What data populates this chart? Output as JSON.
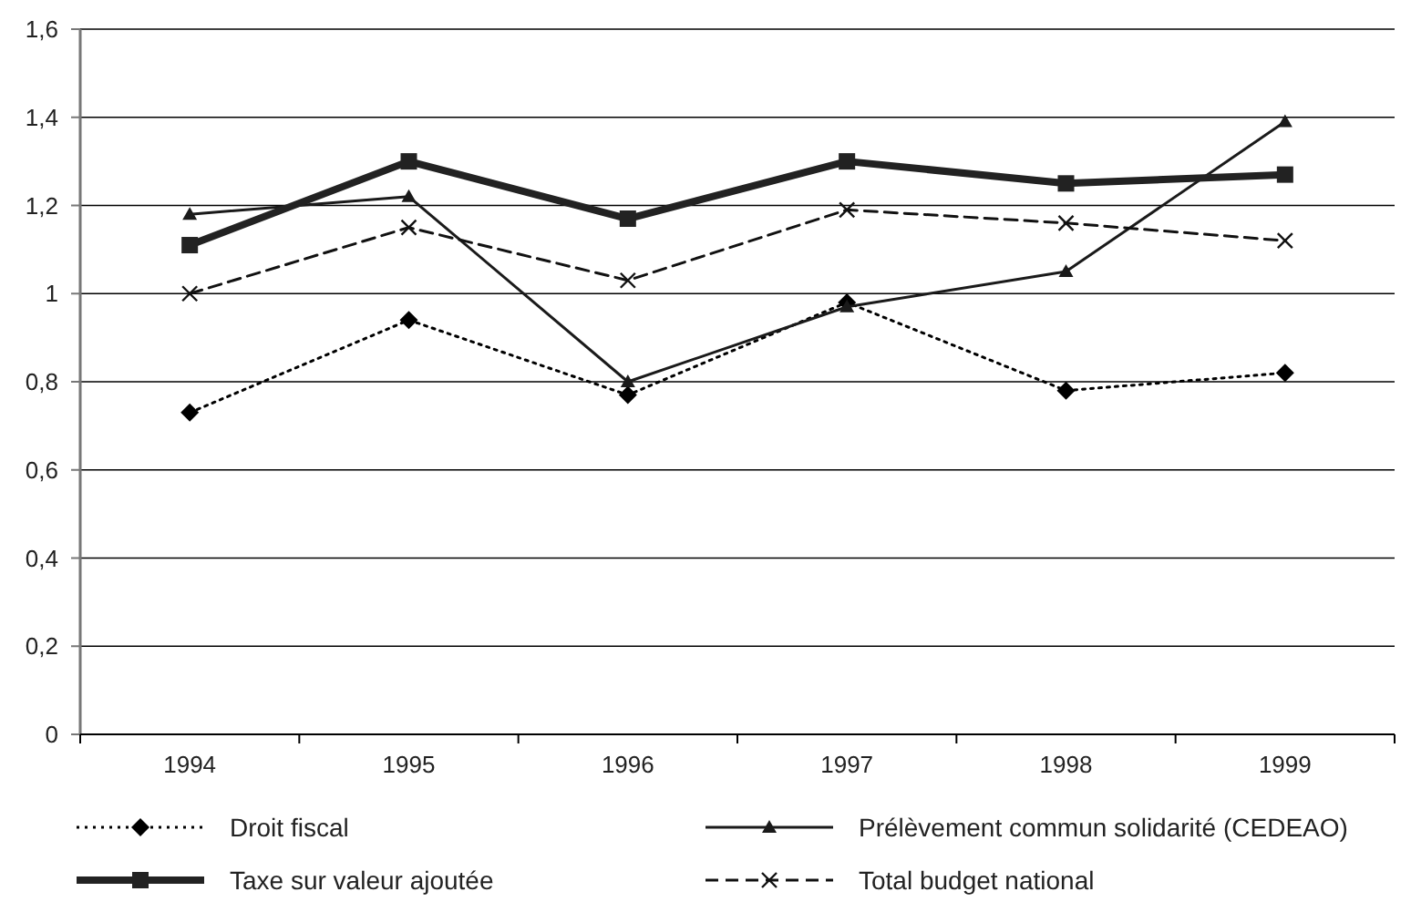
{
  "chart_data": {
    "type": "line",
    "categories": [
      "1994",
      "1995",
      "1996",
      "1997",
      "1998",
      "1999"
    ],
    "ylim": [
      0,
      1.6
    ],
    "yticks": [
      0,
      {
        "value": 0.2,
        "label": "0,2"
      },
      {
        "value": 0.4,
        "label": "0,4"
      },
      {
        "value": 0.6,
        "label": "0,6"
      },
      {
        "value": 0.8,
        "label": "0,8"
      },
      1,
      {
        "value": 1.2,
        "label": "1,2"
      },
      {
        "value": 1.4,
        "label": "1,4"
      },
      {
        "value": 1.6,
        "label": "1,6"
      }
    ],
    "grid": "y",
    "legend": "bottom",
    "series": [
      {
        "name": "Droit fiscal",
        "color": "#000000",
        "marker": "diamond",
        "line_style": "dotted",
        "values": [
          0.73,
          0.94,
          0.77,
          0.98,
          0.78,
          0.82
        ]
      },
      {
        "name": "Prélèvement commun solidarité (CEDEAO)",
        "color": "#1a1a1a",
        "marker": "triangle",
        "line_style": "solid",
        "values": [
          1.18,
          1.22,
          0.8,
          0.97,
          1.05,
          1.39
        ]
      },
      {
        "name": "Taxe sur valeur ajoutée",
        "color": "#222222",
        "marker": "square",
        "line_style": "solid",
        "values": [
          1.11,
          1.3,
          1.17,
          1.3,
          1.25,
          1.27
        ]
      },
      {
        "name": "Total budget national",
        "color": "#111111",
        "marker": "cross",
        "line_style": "dashed",
        "values": [
          1.0,
          1.15,
          1.03,
          1.19,
          1.16,
          1.12
        ]
      }
    ]
  }
}
